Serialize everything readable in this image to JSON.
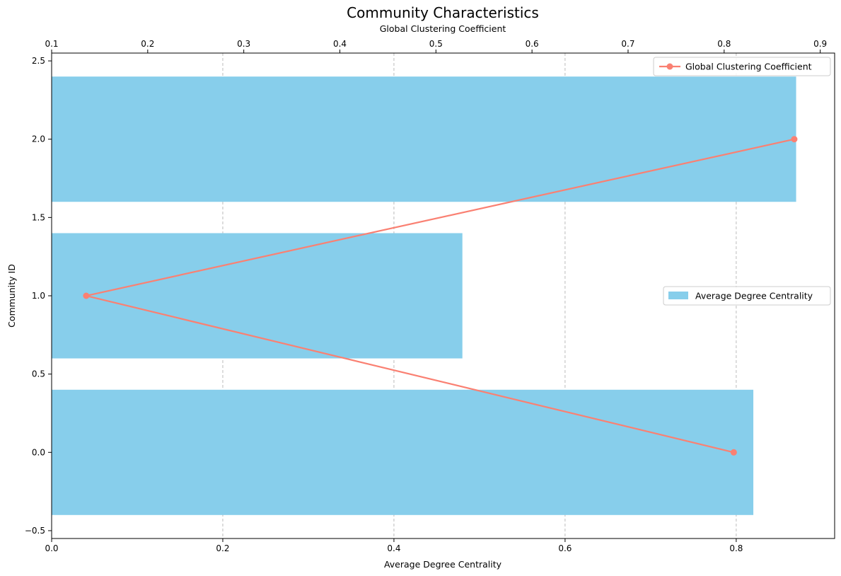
{
  "chart_data": {
    "type": "bar",
    "orientation": "horizontal",
    "title": "Community Characteristics",
    "categories": [
      0,
      1,
      2
    ],
    "ylabel": "Community ID",
    "ylim": [
      -0.55,
      2.55
    ],
    "yticks": [
      -0.5,
      0.0,
      0.5,
      1.0,
      1.5,
      2.0,
      2.5
    ],
    "ytick_labels": [
      "−0.5",
      "0.0",
      "0.5",
      "1.0",
      "1.5",
      "2.0",
      "2.5"
    ],
    "bar_width": 0.8,
    "bars": {
      "name": "Average Degree Centrality",
      "values": [
        0.82,
        0.48,
        0.87
      ],
      "color": "#87CEEB"
    },
    "xlabel_bottom": "Average Degree Centrality",
    "xlim_bottom": [
      0.0,
      0.915
    ],
    "xticks_bottom": [
      0.0,
      0.2,
      0.4,
      0.6,
      0.8
    ],
    "xtick_labels_bottom": [
      "0.0",
      "0.2",
      "0.4",
      "0.6",
      "0.8"
    ],
    "line": {
      "name": "Global Clustering Coefficient",
      "x": [
        0.81,
        0.136,
        0.873
      ],
      "y": [
        0,
        1,
        2
      ],
      "color": "#FA8072"
    },
    "xlabel_top": "Global Clustering Coefficient",
    "xlim_top": [
      0.1,
      0.915
    ],
    "xticks_top": [
      0.1,
      0.2,
      0.3,
      0.4,
      0.5,
      0.6,
      0.7,
      0.8,
      0.9
    ],
    "xtick_labels_top": [
      "0.1",
      "0.2",
      "0.3",
      "0.4",
      "0.5",
      "0.6",
      "0.7",
      "0.8",
      "0.9"
    ],
    "grid": {
      "axis": "x",
      "style": "dashed",
      "color": "#bbbbbb"
    },
    "legend_line_position": "top-right",
    "legend_bars_position": "center-right"
  }
}
